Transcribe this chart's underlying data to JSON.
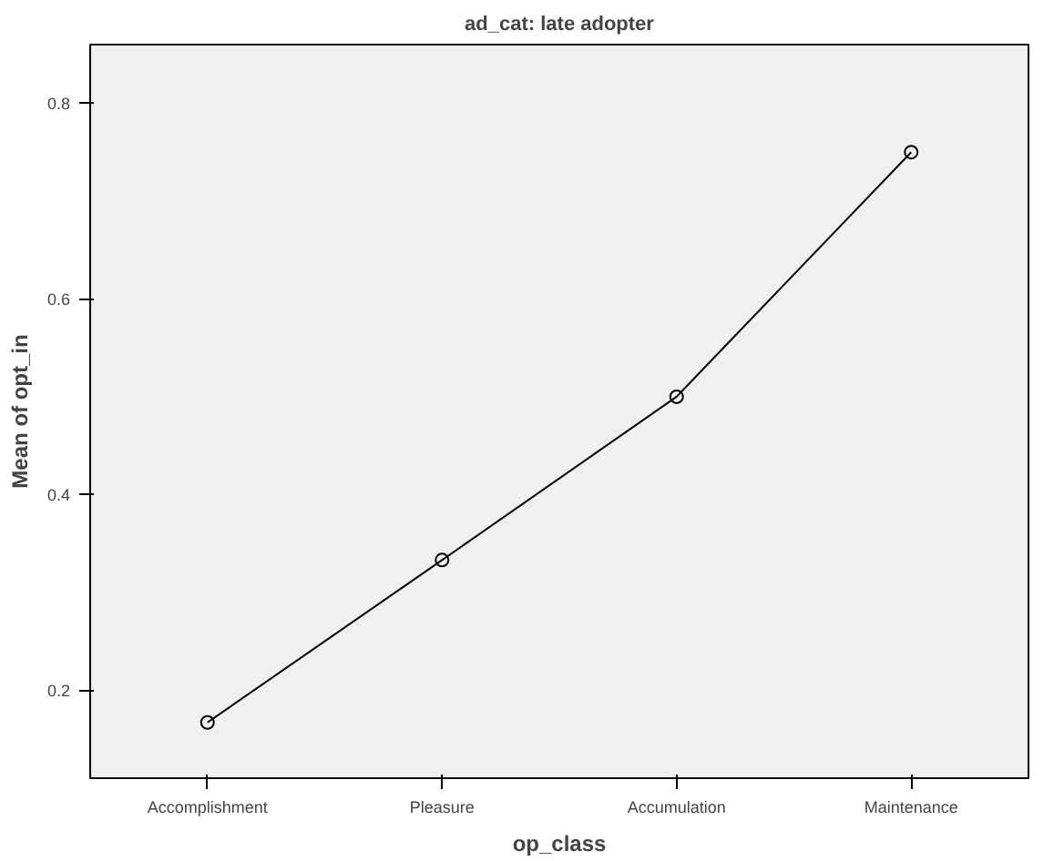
{
  "chart_data": {
    "type": "line",
    "title": "ad_cat: late adopter",
    "xlabel": "op_class",
    "ylabel": "Mean of opt_in",
    "categories": [
      "Accomplishment",
      "Pleasure",
      "Accumulation",
      "Maintenance"
    ],
    "series": [
      {
        "color": "#000000",
        "values": [
          0.167,
          0.333,
          0.5,
          0.75
        ]
      }
    ],
    "ylim": [
      0.11,
      0.86
    ],
    "yticks": [
      0.2,
      0.4,
      0.6,
      0.8
    ],
    "marker": "circle",
    "line_style": "solid",
    "grid": false
  }
}
